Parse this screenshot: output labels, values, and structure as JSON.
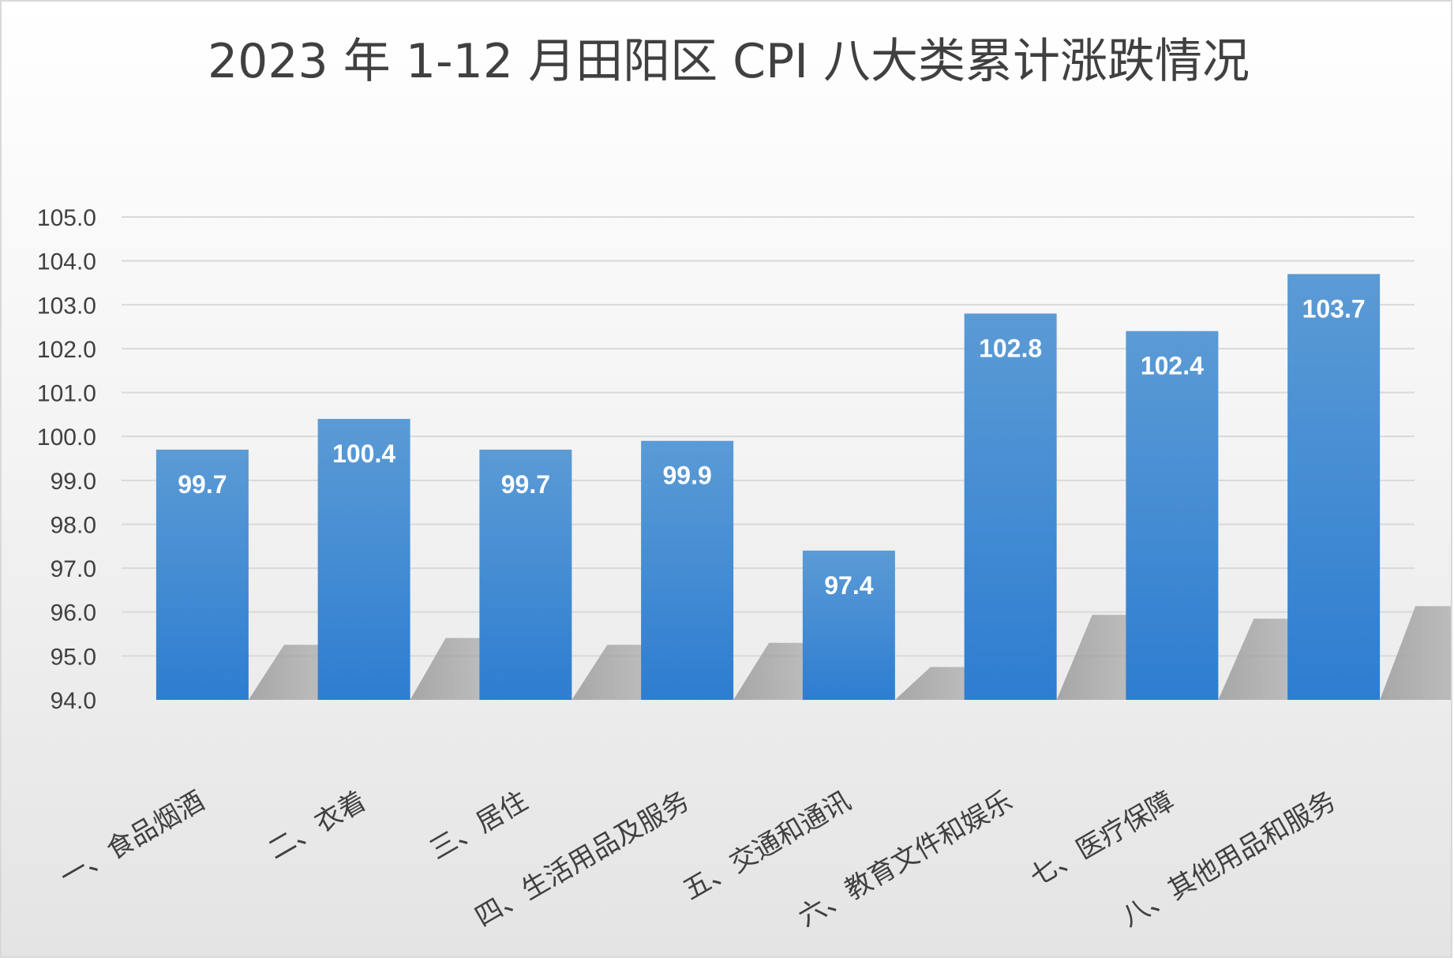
{
  "chart_data": {
    "type": "bar",
    "title": "2023 年 1-12 月田阳区 CPI 八大类累计涨跌情况",
    "categories": [
      "一、食品烟酒",
      "二、衣着",
      "三、居住",
      "四、生活用品及服务",
      "五、交通和通讯",
      "六、教育文件和娱乐",
      "七、医疗保障",
      "八、其他用品和服务"
    ],
    "values": [
      99.7,
      100.4,
      99.7,
      99.9,
      97.4,
      102.8,
      102.4,
      103.7
    ],
    "data_labels": [
      "99.7",
      "100.4",
      "99.7",
      "99.9",
      "97.4",
      "102.8",
      "102.4",
      "103.7"
    ],
    "y_ticks": [
      "94.0",
      "95.0",
      "96.0",
      "97.0",
      "98.0",
      "99.0",
      "100.0",
      "101.0",
      "102.0",
      "103.0",
      "104.0",
      "105.0"
    ],
    "ylim": [
      94,
      105
    ],
    "xlabel": "",
    "ylabel": "",
    "grid": true,
    "legend": "none",
    "colors": {
      "bar_top": "#5b9bd5",
      "bar_bottom": "#2e7dd1",
      "grid": "#d9d9d9",
      "text": "#404040",
      "label": "#ffffff"
    }
  }
}
